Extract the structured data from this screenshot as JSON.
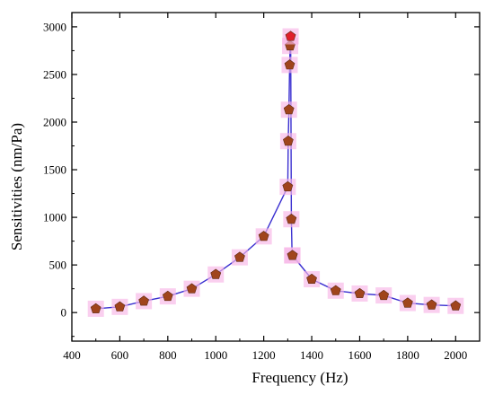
{
  "chart_data": {
    "type": "line",
    "xlabel": "Frequency (Hz)",
    "ylabel": "Sensitivities (nm/Pa)",
    "xlim": [
      400,
      2100
    ],
    "ylim": [
      -300,
      3150
    ],
    "xticks": [
      400,
      600,
      800,
      1000,
      1200,
      1400,
      1600,
      1800,
      2000
    ],
    "yticks": [
      0,
      500,
      1000,
      1500,
      2000,
      2500,
      3000
    ],
    "grid": false,
    "legend": "none",
    "line_color": "#3a2fd0",
    "marker": "pentagon",
    "marker_fill": "#a0441c",
    "marker_peak_fill": "#e0202c",
    "marker_shadow": "#f7b6e6",
    "series": [
      {
        "x": [
          500,
          600,
          700,
          800,
          900,
          1000,
          1100,
          1200,
          1300,
          1302,
          1305,
          1308,
          1310,
          1312,
          1315,
          1318,
          1320,
          1400,
          1500,
          1600,
          1700,
          1800,
          1900,
          2000
        ],
        "y": [
          40,
          60,
          120,
          170,
          250,
          400,
          580,
          800,
          1320,
          1800,
          2130,
          2600,
          2800,
          2900,
          980,
          600,
          600,
          350,
          230,
          200,
          180,
          100,
          80,
          70
        ]
      }
    ]
  }
}
